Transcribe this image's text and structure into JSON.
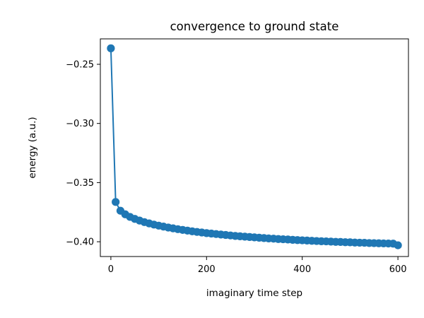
{
  "chart_data": {
    "type": "line",
    "title": "convergence to ground state",
    "xlabel": "imaginary time step",
    "ylabel": "energy (a.u.)",
    "xlim": [
      -22,
      622
    ],
    "ylim": [
      -0.4125,
      -0.2285
    ],
    "xticks": [
      0,
      200,
      400,
      600
    ],
    "xtick_labels": [
      "0",
      "200",
      "400",
      "600"
    ],
    "yticks": [
      -0.4,
      -0.35,
      -0.3,
      -0.25
    ],
    "ytick_labels": [
      "−0.40",
      "−0.35",
      "−0.30",
      "−0.25"
    ],
    "grid": false,
    "legend": false,
    "series": [
      {
        "color": "#1f77b4",
        "marker": "circle",
        "x": [
          0,
          10,
          20,
          30,
          40,
          50,
          60,
          70,
          80,
          90,
          100,
          110,
          120,
          130,
          140,
          150,
          160,
          170,
          180,
          190,
          200,
          210,
          220,
          230,
          240,
          250,
          260,
          270,
          280,
          290,
          300,
          310,
          320,
          330,
          340,
          350,
          360,
          370,
          380,
          390,
          400,
          410,
          420,
          430,
          440,
          450,
          460,
          470,
          480,
          490,
          500,
          510,
          520,
          530,
          540,
          550,
          560,
          570,
          580,
          590,
          600
        ],
        "y": [
          -0.2365,
          -0.3664,
          -0.3738,
          -0.3768,
          -0.379,
          -0.3807,
          -0.3821,
          -0.3834,
          -0.3845,
          -0.3855,
          -0.3864,
          -0.3872,
          -0.388,
          -0.3887,
          -0.3894,
          -0.39,
          -0.3906,
          -0.3912,
          -0.3917,
          -0.3922,
          -0.3927,
          -0.3931,
          -0.3935,
          -0.3939,
          -0.3943,
          -0.3947,
          -0.3951,
          -0.3954,
          -0.3957,
          -0.396,
          -0.3963,
          -0.3966,
          -0.3969,
          -0.3972,
          -0.3974,
          -0.3977,
          -0.3979,
          -0.3981,
          -0.3984,
          -0.3986,
          -0.3988,
          -0.399,
          -0.3992,
          -0.3994,
          -0.3996,
          -0.3997,
          -0.3999,
          -0.4001,
          -0.4002,
          -0.4004,
          -0.4005,
          -0.4007,
          -0.4008,
          -0.4009,
          -0.4011,
          -0.4012,
          -0.4013,
          -0.4014,
          -0.4015,
          -0.4016,
          -0.403
        ]
      }
    ]
  }
}
